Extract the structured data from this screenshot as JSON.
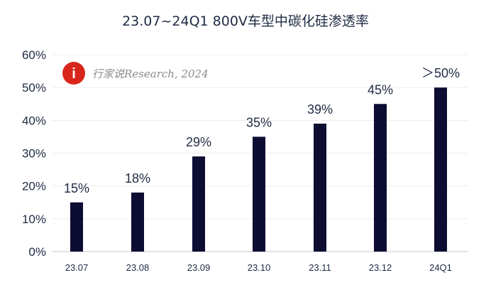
{
  "watermark": {
    "text": "行家说Research, 2024",
    "logo_glyph": "i",
    "logo_color": "#d9261c"
  },
  "chart_data": {
    "type": "bar",
    "title": "23.07~24Q1 800V车型中碳化硅渗透率",
    "categories": [
      "23.07",
      "23.08",
      "23.09",
      "23.10",
      "23.11",
      "23.12",
      "24Q1"
    ],
    "values": [
      15,
      18,
      29,
      35,
      39,
      45,
      50
    ],
    "data_labels": [
      "15%",
      "18%",
      "29%",
      "35%",
      "39%",
      "45%",
      "＞50%"
    ],
    "ylim": [
      0,
      60
    ],
    "yticks": [
      0,
      10,
      20,
      30,
      40,
      50,
      60
    ],
    "ytick_labels": [
      "0%",
      "10%",
      "20%",
      "30%",
      "40%",
      "50%",
      "60%"
    ],
    "xlabel": "",
    "ylabel": "",
    "bar_color": "#0d0d33",
    "grid": true,
    "legend": "none"
  }
}
